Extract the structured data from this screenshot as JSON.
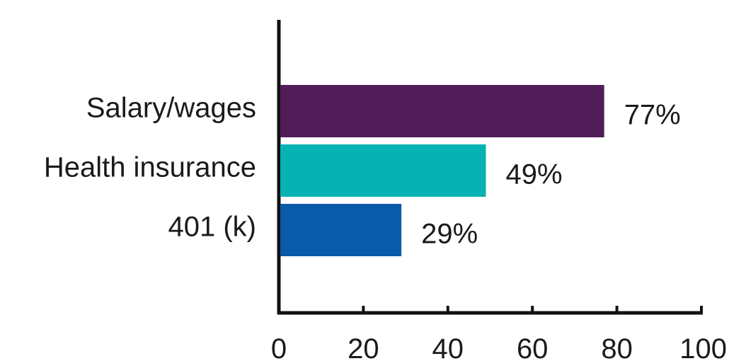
{
  "chart_data": {
    "type": "bar",
    "orientation": "horizontal",
    "categories": [
      "Salary/wages",
      "Health insurance",
      "401 (k)"
    ],
    "values": [
      77,
      49,
      29
    ],
    "value_labels": [
      "77%",
      "49%",
      "29%"
    ],
    "colors": [
      "#521c58",
      "#08b2b2",
      "#0a5aaa"
    ],
    "xlim": [
      0,
      100
    ],
    "x_ticks": [
      0,
      20,
      40,
      60,
      80,
      100
    ],
    "x_tick_labels": [
      "0",
      "20",
      "40",
      "60",
      "80",
      "100"
    ],
    "grid": false,
    "legend": "none"
  }
}
